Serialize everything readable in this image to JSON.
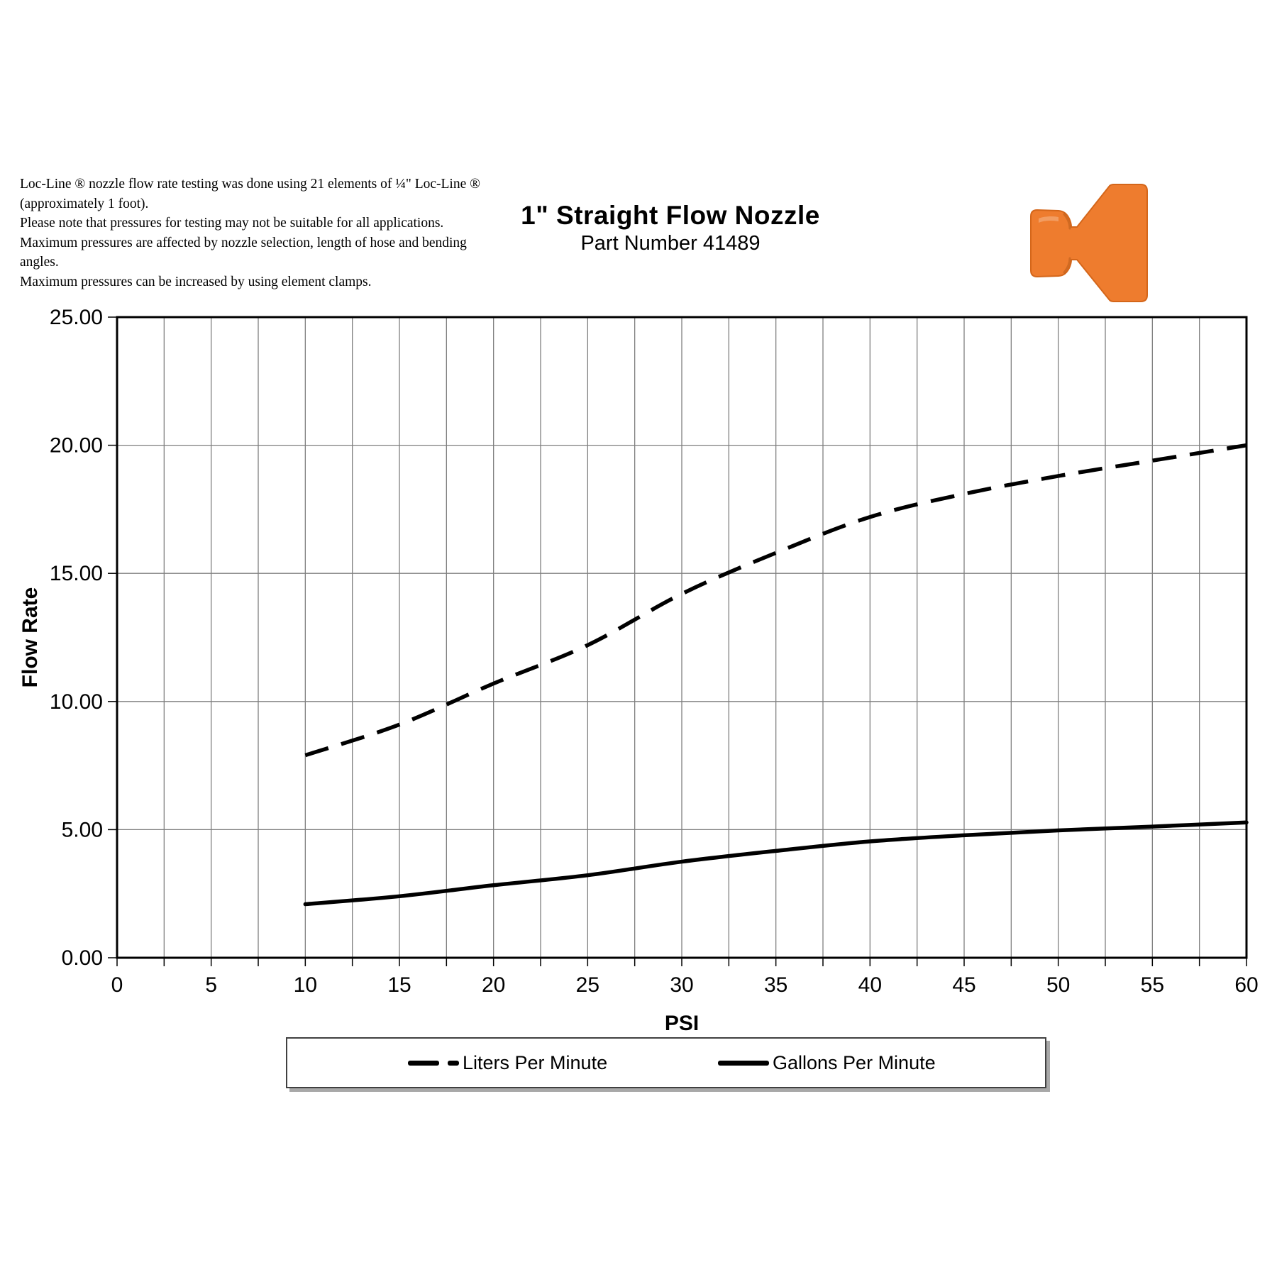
{
  "header": {
    "title": "1\" Straight Flow Nozzle",
    "subtitle": "Part Number 41489"
  },
  "notes": {
    "lines": [
      "Loc-Line ® nozzle flow rate testing was done using 21 elements of ¼\" Loc-Line ®",
      "(approximately 1 foot).",
      "Please note that pressures for testing may not be suitable for all applications.",
      "Maximum pressures are affected by nozzle selection, length of hose and bending",
      "angles.",
      "Maximum pressures can be increased by using element clamps."
    ]
  },
  "nozzle": {
    "description": "orange Loc-Line flat straight flow nozzle photo",
    "color": "#EE7C2E",
    "edge_color": "#d4661a"
  },
  "chart_data": {
    "type": "line",
    "title": "",
    "xlabel": "PSI",
    "ylabel": "Flow Rate",
    "xlim": [
      0,
      60
    ],
    "ylim": [
      0,
      25
    ],
    "x_ticks": [
      0,
      5,
      10,
      15,
      20,
      25,
      30,
      35,
      40,
      45,
      50,
      55,
      60
    ],
    "x_tick_labels": [
      "0",
      "5",
      "10",
      "15",
      "20",
      "25",
      "30",
      "35",
      "40",
      "45",
      "50",
      "55",
      "60"
    ],
    "y_ticks": [
      0,
      5,
      10,
      15,
      20,
      25
    ],
    "y_tick_labels": [
      "0.00",
      "5.00",
      "10.00",
      "15.00",
      "20.00",
      "25.00"
    ],
    "grid": {
      "vertical_every": 2.5,
      "horizontal_every": 5,
      "color": "#7f7f7f"
    },
    "legend_position": "bottom",
    "x": [
      10,
      15,
      20,
      25,
      30,
      35,
      40,
      45,
      50,
      55,
      60
    ],
    "series": [
      {
        "name": "Liters Per Minute",
        "style": "dashed",
        "values": [
          7.9,
          9.1,
          10.7,
          12.2,
          14.2,
          15.8,
          17.2,
          18.1,
          18.8,
          19.4,
          20.0
        ]
      },
      {
        "name": "Gallons Per Minute",
        "style": "solid",
        "values": [
          2.09,
          2.4,
          2.83,
          3.22,
          3.75,
          4.17,
          4.54,
          4.78,
          4.97,
          5.12,
          5.28
        ]
      }
    ]
  }
}
